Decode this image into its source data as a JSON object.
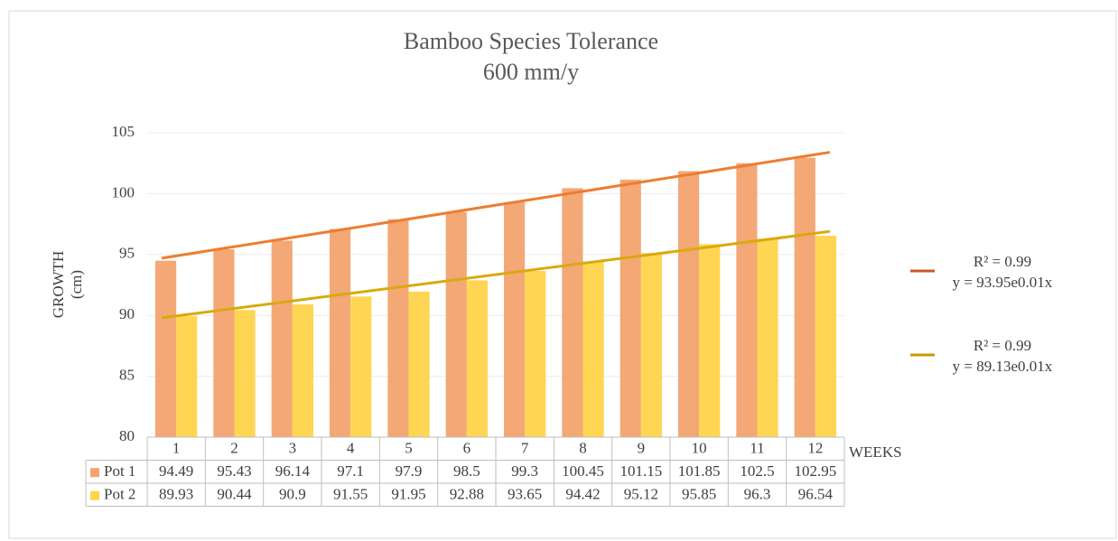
{
  "chart_data": {
    "type": "bar",
    "title": "Bamboo Species Tolerance",
    "subtitle": "600 mm/y",
    "xlabel": "WEEKS",
    "ylabel": [
      "GROWTH",
      "(cm)"
    ],
    "categories": [
      "1",
      "2",
      "3",
      "4",
      "5",
      "6",
      "7",
      "8",
      "9",
      "10",
      "11",
      "12"
    ],
    "series": [
      {
        "name": "Pot 1",
        "color": "#f2a36f",
        "values": [
          94.49,
          95.43,
          96.14,
          97.1,
          97.9,
          98.5,
          99.3,
          100.45,
          101.15,
          101.85,
          102.5,
          102.95
        ],
        "trendline": {
          "color": "#ed7d31",
          "legend_color": "#c55a28",
          "r2_label": "R² = 0.99",
          "equation": "y = 93.95e0.01x",
          "start": 94.7,
          "end": 103.4
        }
      },
      {
        "name": "Pot 2",
        "color": "#ffd44a",
        "values": [
          89.93,
          90.44,
          90.9,
          91.55,
          91.95,
          92.88,
          93.65,
          94.42,
          95.12,
          95.85,
          96.3,
          96.54
        ],
        "trendline": {
          "color": "#d9aa0c",
          "legend_color": "#c89a00",
          "r2_label": "R² = 0.99",
          "equation": "y = 89.13e0.01x",
          "start": 89.8,
          "end": 96.9
        }
      }
    ],
    "ylim": [
      80,
      105
    ],
    "yticks": [
      80,
      85,
      90,
      95,
      100,
      105
    ],
    "grid": true
  }
}
